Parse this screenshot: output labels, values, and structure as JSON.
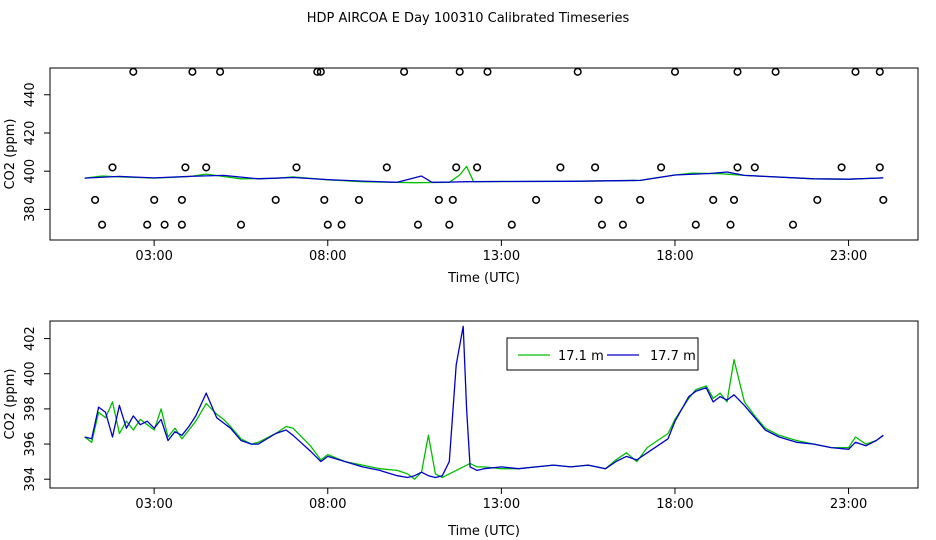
{
  "title": "HDP AIRCOA E  Day 100310  Calibrated Timeseries",
  "colors": {
    "series_17_1": "#00c000",
    "series_17_7": "#0000cc",
    "axis": "#000000"
  },
  "chart_data": [
    {
      "type": "line",
      "xlabel": "Time (UTC)",
      "ylabel": "CO2 (ppm)",
      "xlim": [
        0,
        25
      ],
      "ylim": [
        364,
        454
      ],
      "xticks": [
        3,
        8,
        13,
        18,
        23
      ],
      "xtick_labels": [
        "03:00",
        "08:00",
        "13:00",
        "18:00",
        "23:00"
      ],
      "yticks": [
        380,
        400,
        420,
        440
      ],
      "ytick_labels": [
        "380",
        "400",
        "420",
        "440"
      ],
      "series": [
        {
          "x": [
            1.0,
            1.5,
            2.0,
            3.0,
            4.0,
            4.5,
            5.5,
            6.5,
            7.0,
            8.0,
            9.0,
            10.5,
            11.5,
            11.8,
            12.0,
            12.2,
            13.0,
            15.0,
            17.0,
            18.0,
            18.5,
            19.3,
            20.0,
            22.0,
            23.0,
            24.0
          ],
          "y": [
            396.4,
            397.5,
            397,
            396.4,
            397.2,
            398.5,
            396,
            396.3,
            397,
            395.5,
            394.5,
            394,
            394.2,
            398,
            402.5,
            394.5,
            394.6,
            394.7,
            395.2,
            398,
            399,
            398.7,
            397.8,
            396,
            395.8,
            396.5
          ]
        },
        {
          "x": [
            1.0,
            2.0,
            3.0,
            4.0,
            5.0,
            6.0,
            7.0,
            8.0,
            9.0,
            10.0,
            10.7,
            11.0,
            11.5,
            12.0,
            13.0,
            15.0,
            17.0,
            18.0,
            19.0,
            19.5,
            20.0,
            22.0,
            23.0,
            24.0
          ],
          "y": [
            396.4,
            397.3,
            396.5,
            397.3,
            397.8,
            396,
            396.7,
            395.6,
            394.8,
            394.2,
            397.5,
            394.2,
            394.3,
            394.5,
            394.6,
            394.7,
            395.2,
            398,
            398.8,
            399.6,
            397.8,
            396,
            395.8,
            396.5
          ]
        }
      ],
      "points": {
        "x": [
          1.8,
          1.3,
          1.5,
          2.4,
          3.0,
          3.3,
          2.8,
          3.9,
          3.8,
          3.8,
          4.1,
          4.5,
          4.9,
          5.5,
          6.5,
          7.1,
          7.7,
          7.8,
          7.9,
          8.0,
          8.4,
          8.9,
          9.7,
          10.2,
          10.6,
          11.2,
          11.5,
          11.6,
          11.7,
          11.8,
          12.3,
          12.6,
          13.3,
          14.0,
          14.7,
          15.2,
          15.7,
          15.8,
          15.9,
          16.5,
          17.0,
          17.6,
          18.0,
          18.6,
          19.1,
          19.6,
          19.7,
          19.8,
          19.8,
          20.3,
          20.9,
          21.4,
          22.1,
          22.8,
          23.2,
          23.9,
          23.9,
          24.0
        ],
        "y": [
          402,
          385,
          372,
          452,
          385,
          372,
          372,
          402,
          385,
          372,
          452,
          402,
          452,
          372,
          385,
          402,
          452,
          452,
          385,
          372,
          372,
          385,
          402,
          452,
          372,
          385,
          372,
          385,
          402,
          452,
          402,
          452,
          372,
          385,
          402,
          452,
          402,
          385,
          372,
          372,
          385,
          402,
          452,
          372,
          385,
          372,
          385,
          402,
          452,
          402,
          452,
          372,
          385,
          402,
          452,
          452,
          402,
          385
        ]
      }
    },
    {
      "type": "line",
      "xlabel": "Time (UTC)",
      "ylabel": "CO2 (ppm)",
      "xlim": [
        0,
        25
      ],
      "ylim": [
        393.5,
        403
      ],
      "xticks": [
        3,
        8,
        13,
        18,
        23
      ],
      "xtick_labels": [
        "03:00",
        "08:00",
        "13:00",
        "18:00",
        "23:00"
      ],
      "yticks": [
        394,
        396,
        398,
        400,
        402
      ],
      "ytick_labels": [
        "394",
        "396",
        "398",
        "400",
        "402"
      ],
      "legend": {
        "position": "top-center"
      },
      "series": [
        {
          "name": "17.1 m",
          "color_key": "series_17_1",
          "x": [
            1.0,
            1.2,
            1.4,
            1.6,
            1.8,
            2.0,
            2.2,
            2.4,
            2.6,
            2.8,
            3.0,
            3.2,
            3.4,
            3.6,
            3.8,
            4.0,
            4.2,
            4.5,
            4.8,
            5.0,
            5.2,
            5.5,
            5.8,
            6.0,
            6.5,
            6.8,
            7.0,
            7.5,
            7.8,
            8.0,
            8.5,
            9.0,
            9.5,
            10.0,
            10.3,
            10.5,
            10.7,
            10.9,
            11.1,
            11.3,
            11.5,
            11.7,
            11.9,
            12.1,
            12.3,
            12.5,
            13.0,
            13.5,
            14.0,
            14.5,
            15.0,
            15.5,
            16.0,
            16.3,
            16.6,
            16.9,
            17.2,
            17.5,
            17.8,
            18.0,
            18.2,
            18.4,
            18.6,
            18.9,
            19.1,
            19.3,
            19.5,
            19.7,
            20.0,
            20.3,
            20.6,
            21.0,
            21.5,
            22.0,
            22.5,
            23.0,
            23.2,
            23.5,
            23.8,
            24.0
          ],
          "y": [
            396.4,
            396.1,
            397.8,
            397.5,
            398.4,
            396.6,
            397.3,
            396.8,
            397.4,
            397.1,
            396.8,
            398.0,
            396.4,
            396.9,
            396.3,
            396.8,
            397.3,
            398.3,
            397.7,
            397.4,
            397.0,
            396.3,
            396.0,
            396.1,
            396.6,
            397.0,
            396.9,
            395.9,
            395.1,
            395.4,
            395.0,
            394.8,
            394.6,
            394.5,
            394.3,
            394.0,
            394.4,
            396.5,
            394.3,
            394.1,
            394.3,
            394.5,
            394.7,
            394.9,
            394.7,
            394.7,
            394.6,
            394.6,
            394.7,
            394.8,
            394.7,
            394.8,
            394.6,
            395.1,
            395.5,
            395.0,
            395.8,
            396.2,
            396.6,
            397.4,
            398.0,
            398.6,
            399.1,
            399.3,
            398.6,
            398.9,
            398.4,
            400.8,
            398.4,
            397.6,
            396.9,
            396.5,
            396.2,
            396.0,
            395.8,
            395.8,
            396.4,
            396.0,
            396.2,
            396.5
          ]
        },
        {
          "name": "17.7 m",
          "color_key": "series_17_7",
          "x": [
            1.0,
            1.2,
            1.4,
            1.6,
            1.8,
            2.0,
            2.2,
            2.4,
            2.6,
            2.8,
            3.0,
            3.2,
            3.4,
            3.6,
            3.8,
            4.0,
            4.2,
            4.5,
            4.8,
            5.0,
            5.2,
            5.5,
            5.8,
            6.0,
            6.5,
            6.8,
            7.0,
            7.5,
            7.8,
            8.0,
            8.5,
            9.0,
            9.5,
            10.0,
            10.3,
            10.5,
            10.7,
            10.9,
            11.1,
            11.3,
            11.5,
            11.7,
            11.9,
            12.0,
            12.1,
            12.3,
            12.5,
            13.0,
            13.5,
            14.0,
            14.5,
            15.0,
            15.5,
            16.0,
            16.3,
            16.6,
            16.9,
            17.2,
            17.5,
            17.8,
            18.0,
            18.2,
            18.4,
            18.6,
            18.9,
            19.1,
            19.3,
            19.5,
            19.7,
            20.0,
            20.3,
            20.6,
            21.0,
            21.5,
            22.0,
            22.5,
            23.0,
            23.2,
            23.5,
            23.8,
            24.0
          ],
          "y": [
            396.4,
            396.3,
            398.1,
            397.8,
            396.4,
            398.2,
            396.9,
            397.6,
            397.1,
            397.3,
            396.9,
            397.4,
            396.2,
            396.7,
            396.5,
            397.0,
            397.6,
            398.9,
            397.5,
            397.2,
            396.9,
            396.2,
            396.0,
            396.0,
            396.6,
            396.8,
            396.5,
            395.6,
            395.0,
            395.3,
            395.0,
            394.7,
            394.5,
            394.2,
            394.1,
            394.2,
            394.4,
            394.2,
            394.1,
            394.2,
            395.0,
            400.5,
            402.7,
            398.0,
            394.7,
            394.5,
            394.6,
            394.7,
            394.6,
            394.7,
            394.8,
            394.7,
            394.8,
            394.6,
            395.0,
            395.3,
            395.1,
            395.5,
            395.9,
            396.3,
            397.3,
            398.0,
            398.7,
            399.0,
            399.2,
            398.4,
            398.7,
            398.5,
            398.8,
            398.2,
            397.5,
            396.8,
            396.4,
            396.1,
            396.0,
            395.8,
            395.7,
            396.1,
            395.9,
            396.2,
            396.5
          ]
        }
      ]
    }
  ]
}
